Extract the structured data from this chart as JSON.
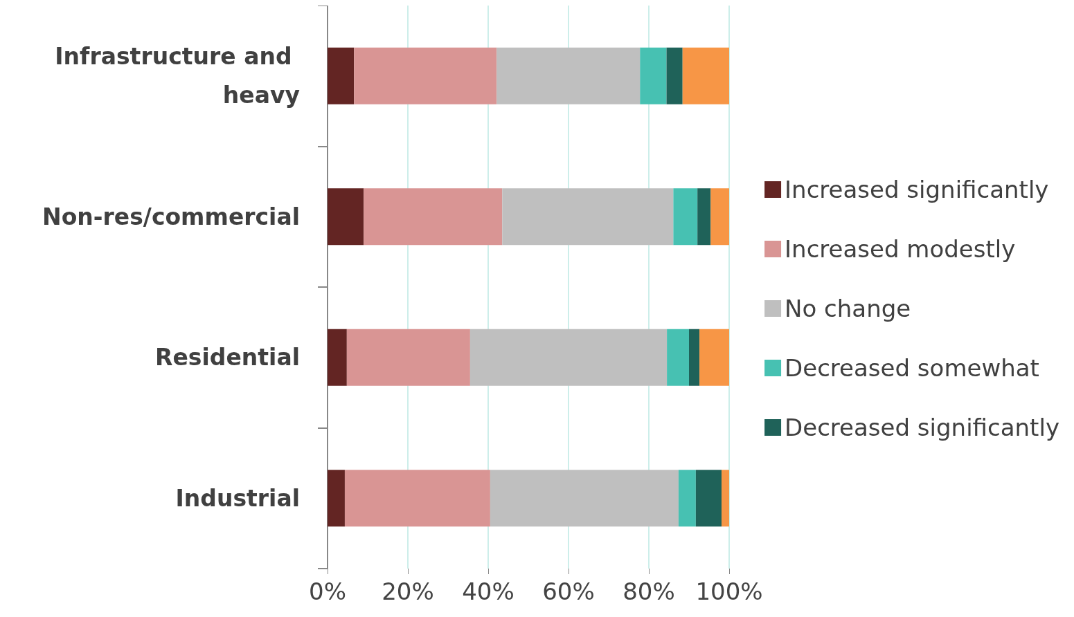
{
  "chart_data": {
    "type": "bar",
    "orientation": "horizontal",
    "stacked": true,
    "categories": [
      "Infrastructure and heavy",
      "Non-res/commercial",
      "Residential",
      "Industrial"
    ],
    "series": [
      {
        "name": "Increased significantly",
        "color": "#632523",
        "values": [
          6.6,
          9.0,
          4.8,
          4.3
        ]
      },
      {
        "name": "Increased modestly",
        "color": "#d99594",
        "values": [
          35.5,
          34.5,
          30.7,
          36.2
        ]
      },
      {
        "name": "No change",
        "color": "#bfbfbf",
        "values": [
          35.7,
          42.6,
          49.0,
          46.9
        ]
      },
      {
        "name": "Decreased somewhat",
        "color": "#47c1b2",
        "values": [
          6.6,
          6.0,
          5.5,
          4.3
        ]
      },
      {
        "name": "Decreased significantly",
        "color": "#1f6259",
        "values": [
          4.0,
          3.3,
          2.6,
          6.4
        ]
      },
      {
        "color": "#f79646",
        "values": [
          11.7,
          4.7,
          7.4,
          1.9
        ]
      }
    ],
    "xlim": [
      0,
      100
    ],
    "xticks": [
      {
        "value": 0,
        "label": "0%"
      },
      {
        "value": 20,
        "label": "20%"
      },
      {
        "value": 40,
        "label": "40%"
      },
      {
        "value": 60,
        "label": "60%"
      },
      {
        "value": 80,
        "label": "80%"
      },
      {
        "value": 100,
        "label": "100%"
      }
    ],
    "grid": "x",
    "legend": "right"
  }
}
